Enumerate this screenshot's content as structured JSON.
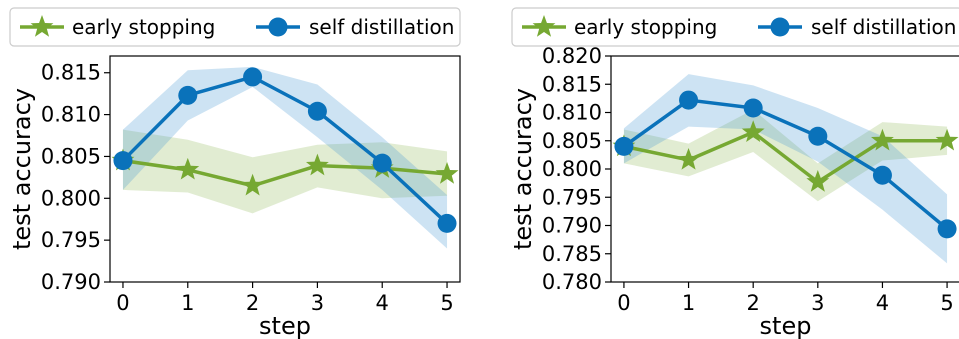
{
  "colors": {
    "early_stopping": "#76a832",
    "self_distillation": "#0a72ba",
    "early_stopping_band": "#76a832",
    "self_distillation_band": "#4a9ad4"
  },
  "chart_data": [
    {
      "type": "line",
      "xlabel": "step",
      "ylabel": "test accuracy",
      "x": [
        0,
        1,
        2,
        3,
        4,
        5
      ],
      "xlim": [
        -0.2,
        5.2
      ],
      "ylim": [
        0.79,
        0.817
      ],
      "yticks": [
        0.79,
        0.795,
        0.8,
        0.805,
        0.81,
        0.815
      ],
      "ytick_labels": [
        "0.790",
        "0.795",
        "0.800",
        "0.805",
        "0.810",
        "0.815"
      ],
      "xtick_labels": [
        "0",
        "1",
        "2",
        "3",
        "4",
        "5"
      ],
      "legend_position": "top",
      "series": [
        {
          "name": "early stopping",
          "marker": "star-icon",
          "values": [
            0.8045,
            0.8034,
            0.8015,
            0.8039,
            0.8036,
            0.8029
          ],
          "band_upper": [
            0.8082,
            0.807,
            0.8049,
            0.8064,
            0.8067,
            0.8056
          ],
          "band_lower": [
            0.801,
            0.8007,
            0.7982,
            0.8013,
            0.8,
            0.8003
          ]
        },
        {
          "name": "self distillation",
          "marker": "circle-icon",
          "values": [
            0.8045,
            0.8123,
            0.8145,
            0.8104,
            0.8042,
            0.797
          ],
          "band_upper": [
            0.8082,
            0.8153,
            0.8157,
            0.8136,
            0.8073,
            0.8004
          ],
          "band_lower": [
            0.801,
            0.8093,
            0.8133,
            0.8073,
            0.801,
            0.794
          ]
        }
      ]
    },
    {
      "type": "line",
      "xlabel": "step",
      "ylabel": "test accuracy",
      "x": [
        0,
        1,
        2,
        3,
        4,
        5
      ],
      "xlim": [
        -0.2,
        5.2
      ],
      "ylim": [
        0.78,
        0.82
      ],
      "yticks": [
        0.78,
        0.785,
        0.79,
        0.795,
        0.8,
        0.805,
        0.81,
        0.815,
        0.82
      ],
      "ytick_labels": [
        "0.780",
        "0.785",
        "0.790",
        "0.795",
        "0.800",
        "0.805",
        "0.810",
        "0.815",
        "0.820"
      ],
      "xtick_labels": [
        "0",
        "1",
        "2",
        "3",
        "4",
        "5"
      ],
      "legend_position": "top",
      "series": [
        {
          "name": "early stopping",
          "marker": "star-icon",
          "values": [
            0.804,
            0.8016,
            0.8065,
            0.7977,
            0.805,
            0.805
          ],
          "band_upper": [
            0.807,
            0.8045,
            0.8105,
            0.801,
            0.8083,
            0.8075
          ],
          "band_lower": [
            0.801,
            0.7987,
            0.803,
            0.7943,
            0.8015,
            0.8025
          ]
        },
        {
          "name": "self distillation",
          "marker": "circle-icon",
          "values": [
            0.804,
            0.8122,
            0.8108,
            0.8058,
            0.7989,
            0.7894
          ],
          "band_upper": [
            0.8072,
            0.8168,
            0.8148,
            0.8108,
            0.8058,
            0.7955
          ],
          "band_lower": [
            0.801,
            0.8075,
            0.807,
            0.8013,
            0.7928,
            0.7833
          ]
        }
      ]
    }
  ]
}
